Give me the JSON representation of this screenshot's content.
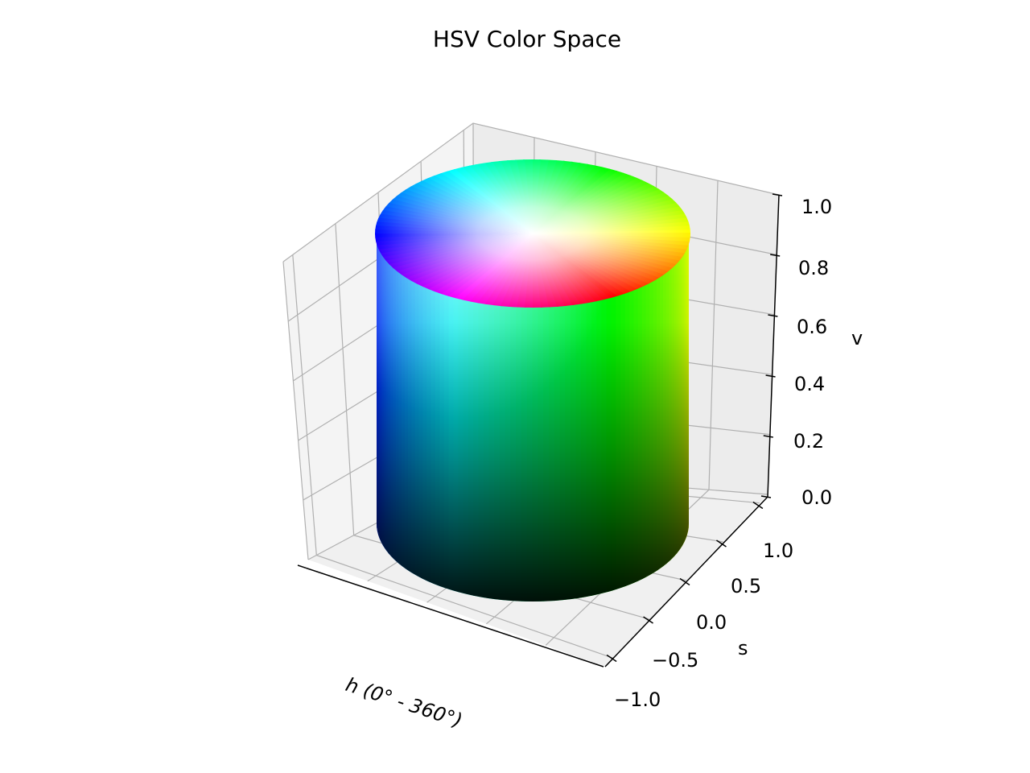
{
  "chart_data": {
    "type": "surface3d",
    "title": "HSV Color Space",
    "xlabel": "h (0° - 360°)",
    "ylabel": "s",
    "zlabel": "v",
    "xticks": [],
    "yticks": [
      "−1.0",
      "−0.5",
      "0.0",
      "0.5",
      "1.0"
    ],
    "zticks": [
      "0.0",
      "0.2",
      "0.4",
      "0.6",
      "0.8",
      "1.0"
    ],
    "ylim": [
      -1.0,
      1.0
    ],
    "zlim": [
      0.0,
      1.0
    ],
    "grid": true,
    "surface": {
      "shape": "cylinder",
      "radius": 1.0,
      "height": 1.0,
      "hue_range": [
        0,
        360
      ],
      "value_range": [
        0.0,
        1.0
      ],
      "saturation_range": [
        0.0,
        1.0
      ]
    }
  },
  "colors": {
    "pane": "#f2f2f2",
    "pane_right": "#ececec",
    "grid": "#b0b0b0",
    "axis": "#000000"
  }
}
